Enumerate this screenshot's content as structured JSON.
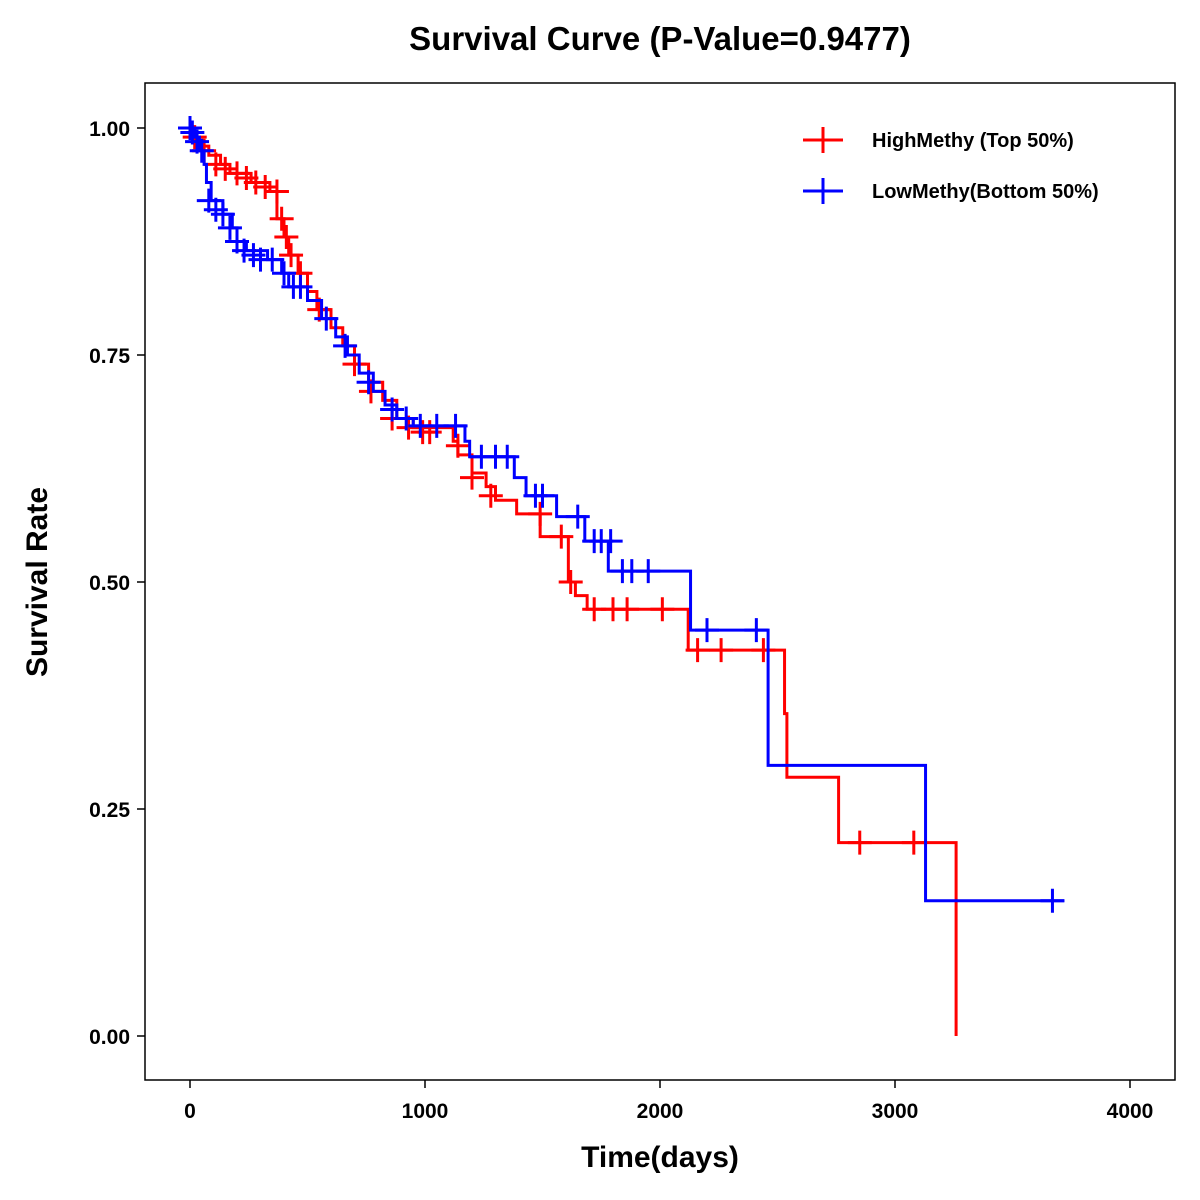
{
  "chart_data": {
    "type": "line",
    "subtype": "kaplan-meier",
    "title": "Survival Curve (P-Value=0.9477)",
    "xlabel": "Time(days)",
    "ylabel": "Survival Rate",
    "xlim": [
      -200,
      4200
    ],
    "ylim": [
      -0.05,
      1.05
    ],
    "xticks": [
      "0",
      "1000",
      "2000",
      "3000",
      "4000"
    ],
    "xtick_values": [
      0,
      1000,
      2000,
      3000,
      4000
    ],
    "yticks": [
      "0.00",
      "0.25",
      "0.50",
      "0.75",
      "1.00"
    ],
    "ytick_values": [
      0,
      0.25,
      0.5,
      0.75,
      1.0
    ],
    "legend_position": "top-right",
    "grid": false,
    "series": [
      {
        "name": "HighMethy (Top 50%)",
        "color": "#ff0000",
        "steps": [
          [
            0,
            1.0
          ],
          [
            20,
            0.99
          ],
          [
            40,
            0.98
          ],
          [
            80,
            0.97
          ],
          [
            130,
            0.96
          ],
          [
            170,
            0.95
          ],
          [
            260,
            0.94
          ],
          [
            340,
            0.93
          ],
          [
            370,
            0.9
          ],
          [
            400,
            0.88
          ],
          [
            420,
            0.86
          ],
          [
            460,
            0.84
          ],
          [
            500,
            0.82
          ],
          [
            540,
            0.8
          ],
          [
            600,
            0.78
          ],
          [
            650,
            0.76
          ],
          [
            700,
            0.74
          ],
          [
            760,
            0.72
          ],
          [
            820,
            0.7
          ],
          [
            880,
            0.68
          ],
          [
            950,
            0.67
          ],
          [
            1120,
            0.655
          ],
          [
            1140,
            0.64
          ],
          [
            1200,
            0.62
          ],
          [
            1260,
            0.605
          ],
          [
            1300,
            0.59
          ],
          [
            1390,
            0.575
          ],
          [
            1490,
            0.55
          ],
          [
            1610,
            0.5
          ],
          [
            1640,
            0.485
          ],
          [
            1690,
            0.47
          ],
          [
            2120,
            0.425
          ],
          [
            2530,
            0.355
          ],
          [
            2540,
            0.285
          ],
          [
            2760,
            0.213
          ],
          [
            3260,
            0.0
          ]
        ],
        "end_time": 3260,
        "censored": [
          [
            20,
            0.99
          ],
          [
            60,
            0.975
          ],
          [
            110,
            0.96
          ],
          [
            150,
            0.955
          ],
          [
            200,
            0.95
          ],
          [
            240,
            0.945
          ],
          [
            280,
            0.94
          ],
          [
            320,
            0.935
          ],
          [
            370,
            0.93
          ],
          [
            390,
            0.9
          ],
          [
            410,
            0.88
          ],
          [
            430,
            0.86
          ],
          [
            470,
            0.84
          ],
          [
            550,
            0.8
          ],
          [
            700,
            0.74
          ],
          [
            770,
            0.71
          ],
          [
            860,
            0.68
          ],
          [
            930,
            0.67
          ],
          [
            990,
            0.665
          ],
          [
            1020,
            0.665
          ],
          [
            1140,
            0.65
          ],
          [
            1200,
            0.615
          ],
          [
            1280,
            0.595
          ],
          [
            1490,
            0.575
          ],
          [
            1580,
            0.55
          ],
          [
            1620,
            0.5
          ],
          [
            1720,
            0.47
          ],
          [
            1800,
            0.47
          ],
          [
            1860,
            0.47
          ],
          [
            2010,
            0.47
          ],
          [
            2160,
            0.425
          ],
          [
            2260,
            0.425
          ],
          [
            2440,
            0.425
          ],
          [
            2850,
            0.213
          ],
          [
            3080,
            0.213
          ]
        ]
      },
      {
        "name": "LowMethy(Bottom 50%)",
        "color": "#0000ff",
        "steps": [
          [
            0,
            1.0
          ],
          [
            20,
            0.99
          ],
          [
            40,
            0.975
          ],
          [
            60,
            0.96
          ],
          [
            70,
            0.94
          ],
          [
            90,
            0.92
          ],
          [
            140,
            0.905
          ],
          [
            180,
            0.89
          ],
          [
            200,
            0.875
          ],
          [
            240,
            0.865
          ],
          [
            330,
            0.855
          ],
          [
            390,
            0.84
          ],
          [
            420,
            0.825
          ],
          [
            500,
            0.81
          ],
          [
            560,
            0.79
          ],
          [
            620,
            0.77
          ],
          [
            670,
            0.75
          ],
          [
            720,
            0.73
          ],
          [
            780,
            0.71
          ],
          [
            830,
            0.695
          ],
          [
            880,
            0.68
          ],
          [
            950,
            0.672
          ],
          [
            1170,
            0.655
          ],
          [
            1190,
            0.638
          ],
          [
            1380,
            0.615
          ],
          [
            1430,
            0.595
          ],
          [
            1560,
            0.572
          ],
          [
            1680,
            0.545
          ],
          [
            1780,
            0.512
          ],
          [
            2130,
            0.447
          ],
          [
            2460,
            0.298
          ],
          [
            3130,
            0.149
          ]
        ],
        "end_time": 3720,
        "censored": [
          [
            0,
            1.0
          ],
          [
            10,
            0.995
          ],
          [
            30,
            0.985
          ],
          [
            50,
            0.975
          ],
          [
            80,
            0.92
          ],
          [
            110,
            0.91
          ],
          [
            140,
            0.905
          ],
          [
            170,
            0.89
          ],
          [
            200,
            0.875
          ],
          [
            230,
            0.865
          ],
          [
            270,
            0.86
          ],
          [
            300,
            0.855
          ],
          [
            350,
            0.855
          ],
          [
            400,
            0.84
          ],
          [
            440,
            0.825
          ],
          [
            470,
            0.825
          ],
          [
            580,
            0.79
          ],
          [
            660,
            0.76
          ],
          [
            760,
            0.72
          ],
          [
            860,
            0.69
          ],
          [
            920,
            0.68
          ],
          [
            980,
            0.672
          ],
          [
            1050,
            0.672
          ],
          [
            1130,
            0.672
          ],
          [
            1240,
            0.638
          ],
          [
            1300,
            0.638
          ],
          [
            1350,
            0.638
          ],
          [
            1470,
            0.595
          ],
          [
            1500,
            0.595
          ],
          [
            1650,
            0.572
          ],
          [
            1720,
            0.545
          ],
          [
            1750,
            0.545
          ],
          [
            1790,
            0.545
          ],
          [
            1840,
            0.512
          ],
          [
            1880,
            0.512
          ],
          [
            1950,
            0.512
          ],
          [
            2200,
            0.447
          ],
          [
            2410,
            0.447
          ],
          [
            3670,
            0.149
          ]
        ]
      }
    ]
  }
}
